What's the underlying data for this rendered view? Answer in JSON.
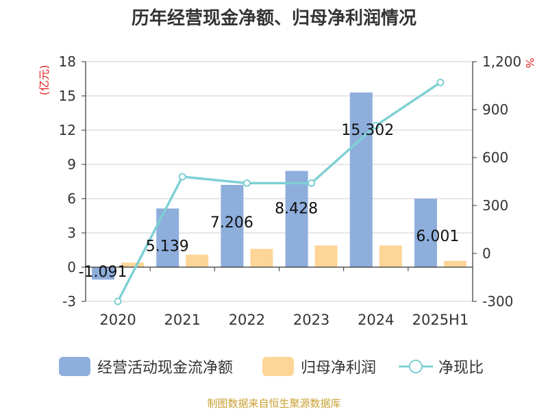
{
  "title": "历年经营现金净额、归母净利润情况",
  "source": "制图数据来自恒生聚源数据库",
  "chart_data": {
    "type": "bar",
    "categories": [
      "2020",
      "2021",
      "2022",
      "2023",
      "2024",
      "2025H1"
    ],
    "left_axis": {
      "unit": "(亿元)",
      "ylim": [
        -3,
        18
      ],
      "ticks": [
        "-3",
        "0",
        "3",
        "6",
        "9",
        "12",
        "15",
        "18"
      ]
    },
    "right_axis": {
      "unit": "%",
      "ylim": [
        -300,
        1200
      ],
      "ticks": [
        "-300",
        "0",
        "300",
        "600",
        "900",
        "1,200"
      ]
    },
    "series": [
      {
        "name": "经营活动现金流净额",
        "type": "bar",
        "axis": "left",
        "color": "#8eaedc",
        "values": [
          -1.091,
          5.139,
          7.206,
          8.428,
          15.302,
          6.001
        ],
        "labels": [
          "-1.091",
          "5.139",
          "7.206",
          "8.428",
          "15.302",
          "6.001"
        ]
      },
      {
        "name": "归母净利润",
        "type": "bar",
        "axis": "left",
        "color": "#fdd597",
        "values": [
          0.4,
          1.1,
          1.6,
          1.9,
          1.9,
          0.55
        ]
      },
      {
        "name": "净现比",
        "type": "line",
        "axis": "right",
        "color": "#7fd0d4",
        "values": [
          -300,
          480,
          440,
          440,
          800,
          1070
        ]
      }
    ],
    "grid": true,
    "legend_position": "bottom"
  }
}
